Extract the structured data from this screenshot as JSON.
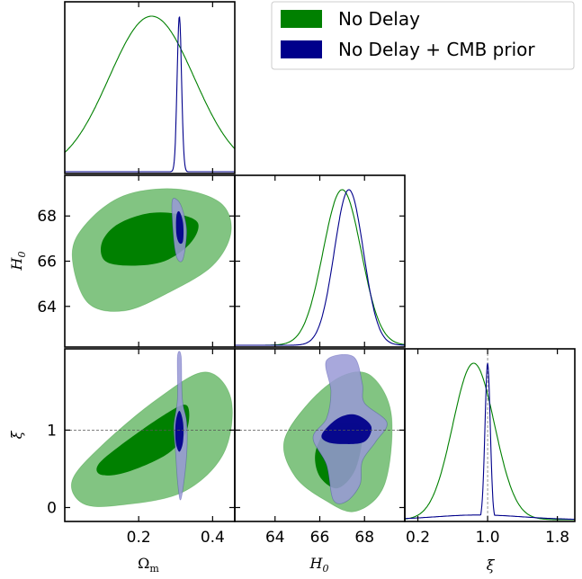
{
  "chart_data": {
    "type": "corner-plot",
    "legend": {
      "position": "top-right",
      "entries": [
        {
          "label": "No Delay",
          "color": "#008000"
        },
        {
          "label": "No Delay + CMB prior",
          "color": "#00008b"
        }
      ]
    },
    "parameters": [
      {
        "name": "Omega_m",
        "label": "Ω",
        "label_sub": "m",
        "range": [
          0.0,
          0.46
        ],
        "ticks": [
          0.2,
          0.4
        ],
        "tick_labels": [
          "0.2",
          "0.4"
        ]
      },
      {
        "name": "H0",
        "label": "H",
        "label_sub": "0",
        "range": [
          62.2,
          69.8
        ],
        "ticks": [
          64,
          66,
          68
        ],
        "tick_labels": [
          "64",
          "66",
          "68"
        ]
      },
      {
        "name": "xi",
        "label": "ξ",
        "label_sub": "",
        "range": [
          -0.18,
          2.05
        ],
        "ticks": [
          0,
          1
        ],
        "tick_labels": [
          "0",
          "1"
        ],
        "diag_range": [
          0.05,
          2.0
        ],
        "diag_ticks": [
          0.2,
          1.0,
          1.8
        ],
        "diag_tick_labels": [
          "0.2",
          "1.0",
          "1.8"
        ]
      }
    ],
    "reference_line": {
      "parameter": "xi",
      "value": 1.0
    },
    "series": [
      {
        "name": "No Delay",
        "color": "#008000",
        "marginals": {
          "Omega_m": {
            "mean": 0.235,
            "sigma": 0.115
          },
          "H0": {
            "mean": 67.0,
            "sigma": 0.85
          },
          "xi": {
            "mean": 0.84,
            "sigma": 0.24
          }
        },
        "contours_2d": {
          "H0_vs_Omega_m": {
            "inner_68": [
              [
                0.1,
                66.8
              ],
              [
                0.14,
                67.6
              ],
              [
                0.22,
                68.1
              ],
              [
                0.3,
                68.1
              ],
              [
                0.36,
                67.7
              ],
              [
                0.34,
                66.8
              ],
              [
                0.27,
                66.0
              ],
              [
                0.18,
                65.8
              ],
              [
                0.11,
                66.0
              ]
            ],
            "outer_95": [
              [
                0.02,
                66.3
              ],
              [
                0.06,
                67.7
              ],
              [
                0.16,
                68.9
              ],
              [
                0.3,
                69.2
              ],
              [
                0.42,
                68.6
              ],
              [
                0.45,
                67.3
              ],
              [
                0.4,
                65.8
              ],
              [
                0.28,
                64.6
              ],
              [
                0.16,
                63.8
              ],
              [
                0.06,
                64.2
              ]
            ]
          },
          "xi_vs_Omega_m": {
            "inner_68": [
              [
                0.09,
                0.55
              ],
              [
                0.15,
                0.8
              ],
              [
                0.27,
                1.2
              ],
              [
                0.33,
                1.32
              ],
              [
                0.33,
                1.0
              ],
              [
                0.28,
                0.7
              ],
              [
                0.17,
                0.46
              ],
              [
                0.1,
                0.42
              ]
            ],
            "outer_95": [
              [
                0.02,
                0.35
              ],
              [
                0.1,
                0.8
              ],
              [
                0.25,
                1.4
              ],
              [
                0.38,
                1.75
              ],
              [
                0.45,
                1.4
              ],
              [
                0.43,
                0.7
              ],
              [
                0.32,
                0.2
              ],
              [
                0.15,
                0.03
              ],
              [
                0.05,
                0.05
              ]
            ]
          },
          "xi_vs_H0": {
            "inner_68": [
              [
                65.8,
                0.7
              ],
              [
                66.3,
                1.0
              ],
              [
                67.2,
                1.1
              ],
              [
                67.9,
                1.0
              ],
              [
                67.6,
                0.5
              ],
              [
                66.8,
                0.25
              ],
              [
                66.0,
                0.4
              ]
            ],
            "outer_95": [
              [
                64.4,
                0.85
              ],
              [
                65.5,
                1.35
              ],
              [
                67.0,
                1.7
              ],
              [
                68.3,
                1.7
              ],
              [
                69.2,
                1.2
              ],
              [
                68.9,
                0.3
              ],
              [
                67.6,
                -0.05
              ],
              [
                66.2,
                0.1
              ],
              [
                64.9,
                0.4
              ]
            ]
          }
        }
      },
      {
        "name": "No Delay + CMB prior",
        "color": "#00008b",
        "marginals": {
          "Omega_m": {
            "mean": 0.31,
            "sigma": 0.006
          },
          "H0": {
            "mean": 67.3,
            "sigma": 0.65
          },
          "xi": {
            "mean": 1.0,
            "sigma": 0.03
          }
        },
        "contours_2d": {
          "H0_vs_Omega_m": {
            "inner_68": [
              [
                0.302,
                68.0
              ],
              [
                0.31,
                68.2
              ],
              [
                0.32,
                67.7
              ],
              [
                0.32,
                66.9
              ],
              [
                0.31,
                66.8
              ],
              [
                0.302,
                67.2
              ]
            ],
            "outer_95": [
              [
                0.29,
                68.6
              ],
              [
                0.305,
                68.7
              ],
              [
                0.32,
                68.2
              ],
              [
                0.33,
                67.3
              ],
              [
                0.32,
                66.1
              ],
              [
                0.305,
                66.1
              ],
              [
                0.295,
                66.9
              ]
            ]
          },
          "xi_vs_Omega_m": {
            "inner_68": [
              [
                0.3,
                1.1
              ],
              [
                0.31,
                1.25
              ],
              [
                0.32,
                1.1
              ],
              [
                0.32,
                0.85
              ],
              [
                0.31,
                0.72
              ],
              [
                0.3,
                0.85
              ]
            ],
            "outer_95": [
              [
                0.305,
                1.95
              ],
              [
                0.315,
                1.95
              ],
              [
                0.318,
                1.4
              ],
              [
                0.33,
                1.1
              ],
              [
                0.33,
                0.7
              ],
              [
                0.32,
                0.25
              ],
              [
                0.312,
                0.1
              ],
              [
                0.305,
                0.35
              ],
              [
                0.3,
                0.7
              ],
              [
                0.295,
                1.05
              ],
              [
                0.305,
                1.4
              ]
            ]
          },
          "xi_vs_H0": {
            "inner_68": [
              [
                66.1,
                0.95
              ],
              [
                66.8,
                1.15
              ],
              [
                67.6,
                1.2
              ],
              [
                68.3,
                1.05
              ],
              [
                68.0,
                0.85
              ],
              [
                67.0,
                0.82
              ],
              [
                66.3,
                0.85
              ]
            ],
            "outer_95": [
              [
                66.3,
                1.9
              ],
              [
                67.5,
                1.95
              ],
              [
                67.9,
                1.6
              ],
              [
                68.0,
                1.35
              ],
              [
                69.0,
                1.1
              ],
              [
                68.5,
                0.85
              ],
              [
                67.9,
                0.6
              ],
              [
                67.8,
                0.3
              ],
              [
                67.2,
                0.08
              ],
              [
                66.6,
                0.1
              ],
              [
                66.3,
                0.55
              ],
              [
                65.7,
                0.9
              ],
              [
                66.3,
                1.15
              ],
              [
                66.5,
                1.5
              ]
            ]
          }
        }
      }
    ],
    "grid": false
  }
}
